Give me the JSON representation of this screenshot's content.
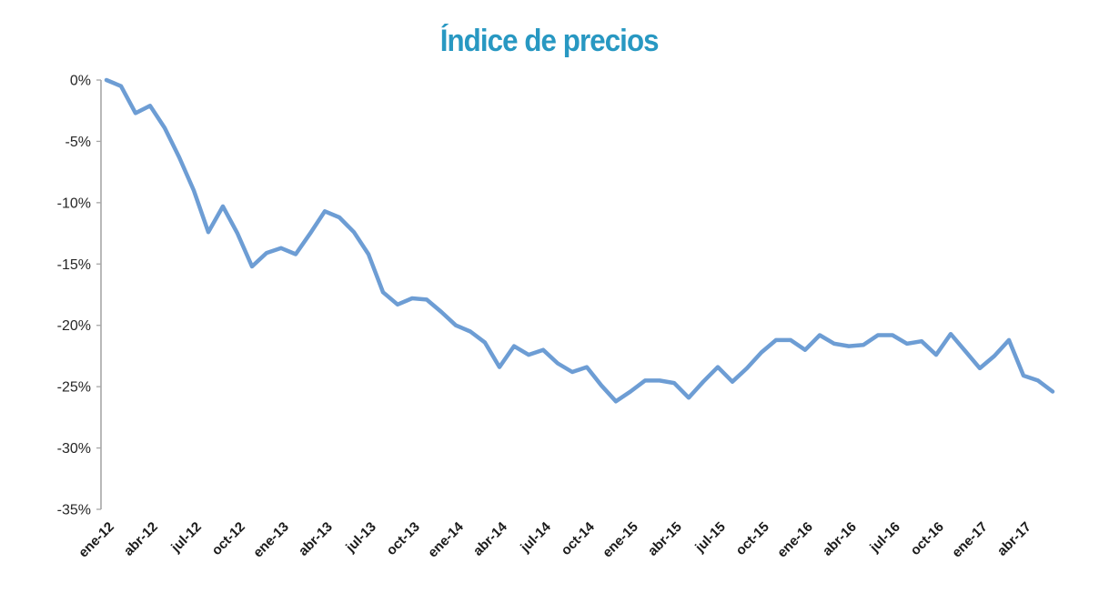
{
  "chart_data": {
    "type": "line",
    "title": "Índice de precios",
    "xlabel": "",
    "ylabel": "",
    "ylim": [
      -35,
      0
    ],
    "grid": false,
    "legend": "none",
    "y_tick_labels": [
      "0%",
      "-5%",
      "-10%",
      "-15%",
      "-20%",
      "-25%",
      "-30%",
      "-35%"
    ],
    "x_tick_labels": [
      "ene-12",
      "abr-12",
      "jul-12",
      "oct-12",
      "ene-13",
      "abr-13",
      "jul-13",
      "oct-13",
      "ene-14",
      "abr-14",
      "jul-14",
      "oct-14",
      "ene-15",
      "abr-15",
      "jul-15",
      "oct-15",
      "ene-16",
      "abr-16",
      "jul-16",
      "oct-16",
      "ene-17",
      "abr-17"
    ],
    "x_tick_every": 3,
    "series": [
      {
        "name": "Índice de precios",
        "x": [
          "ene-12",
          "feb-12",
          "mar-12",
          "abr-12",
          "may-12",
          "jun-12",
          "jul-12",
          "ago-12",
          "sep-12",
          "oct-12",
          "nov-12",
          "dic-12",
          "ene-13",
          "feb-13",
          "mar-13",
          "abr-13",
          "may-13",
          "jun-13",
          "jul-13",
          "ago-13",
          "sep-13",
          "oct-13",
          "nov-13",
          "dic-13",
          "ene-14",
          "feb-14",
          "mar-14",
          "abr-14",
          "may-14",
          "jun-14",
          "jul-14",
          "ago-14",
          "sep-14",
          "oct-14",
          "nov-14",
          "dic-14",
          "ene-15",
          "feb-15",
          "mar-15",
          "abr-15",
          "may-15",
          "jun-15",
          "jul-15",
          "ago-15",
          "sep-15",
          "oct-15",
          "nov-15",
          "dic-15",
          "ene-16",
          "feb-16",
          "mar-16",
          "abr-16",
          "may-16",
          "jun-16",
          "jul-16",
          "ago-16",
          "sep-16",
          "oct-16",
          "nov-16",
          "dic-16",
          "ene-17",
          "feb-17",
          "mar-17",
          "abr-17",
          "may-17",
          "jun-17"
        ],
        "values": [
          0.0,
          -0.5,
          -2.7,
          -2.1,
          -3.9,
          -6.3,
          -9.0,
          -12.4,
          -10.3,
          -12.5,
          -15.2,
          -14.1,
          -13.7,
          -14.2,
          -12.5,
          -10.7,
          -11.2,
          -12.4,
          -14.2,
          -17.3,
          -18.3,
          -17.8,
          -17.9,
          -18.9,
          -20.0,
          -20.5,
          -21.4,
          -23.4,
          -21.7,
          -22.4,
          -22.0,
          -23.1,
          -23.8,
          -23.4,
          -24.9,
          -26.2,
          -25.4,
          -24.5,
          -24.5,
          -24.7,
          -25.9,
          -24.6,
          -23.4,
          -24.6,
          -23.5,
          -22.2,
          -21.2,
          -21.2,
          -22.0,
          -20.8,
          -21.5,
          -21.7,
          -21.6,
          -20.8,
          -20.8,
          -21.5,
          -21.3,
          -22.4,
          -20.7,
          -22.1,
          -23.5,
          -22.5,
          -21.2,
          -24.1,
          -24.5,
          -25.4
        ]
      }
    ],
    "line_color": "#6d9dd4",
    "axis_color": "#a6a6a6",
    "title_color": "#2898c2",
    "label_color": "#262626"
  }
}
